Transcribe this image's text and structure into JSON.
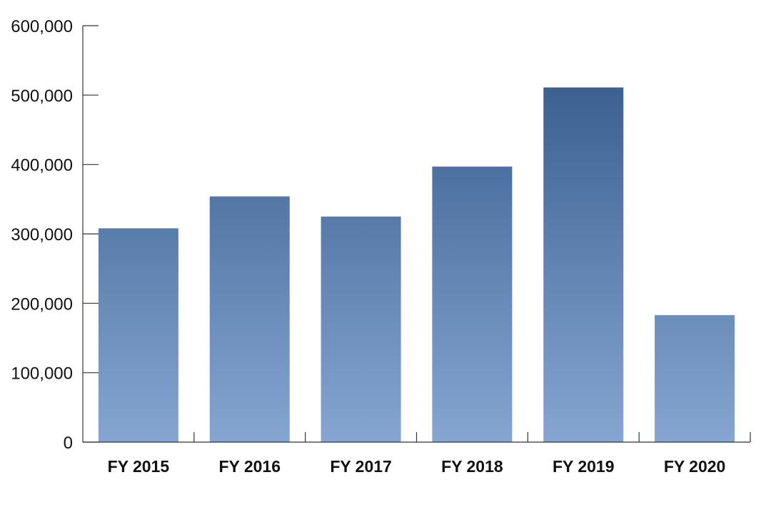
{
  "chart_data": {
    "type": "bar",
    "title": "",
    "xlabel": "",
    "ylabel": "",
    "categories": [
      "FY 2015",
      "FY 2016",
      "FY 2017",
      "FY 2018",
      "FY 2019",
      "FY 2020"
    ],
    "values": [
      308000,
      354000,
      325000,
      397000,
      511000,
      183000
    ],
    "ylim": [
      0,
      600000
    ],
    "y_ticks": [
      0,
      100000,
      200000,
      300000,
      400000,
      500000,
      600000
    ],
    "y_tick_labels": [
      "0",
      "100,000",
      "200,000",
      "300,000",
      "400,000",
      "500,000",
      "600,000"
    ],
    "grid": false,
    "legend": "none",
    "colors": {
      "bar_top": "#2e5587",
      "bar_bottom": "#86a6d1",
      "axis": "#333333"
    }
  }
}
